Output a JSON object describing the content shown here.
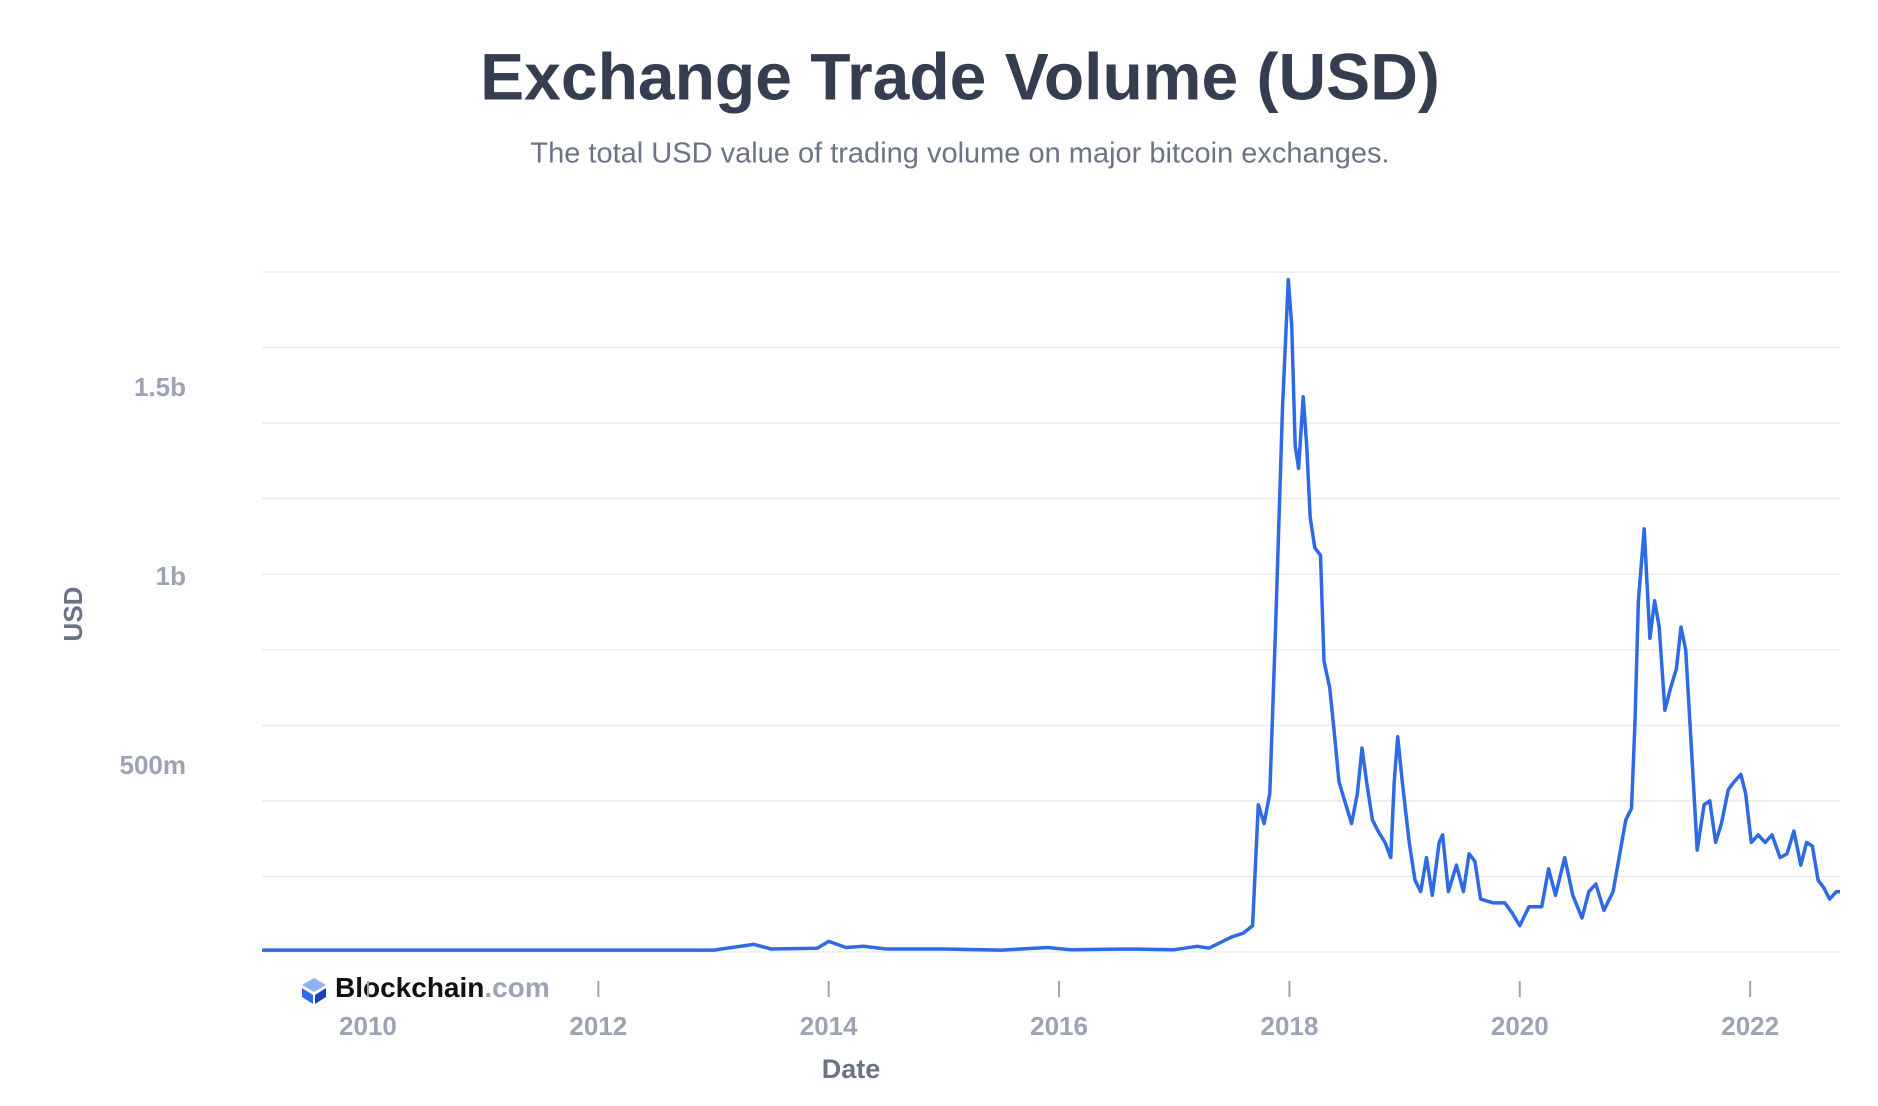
{
  "chart_data": {
    "type": "line",
    "title": "Exchange Trade Volume (USD)",
    "subtitle": "The total USD value of trading volume on major bitcoin exchanges.",
    "x_label": "Date",
    "y_label": "USD",
    "watermark": {
      "brand": "Blockchain",
      "domain": ".com"
    },
    "xlim": [
      2009.08,
      2022.78
    ],
    "xticks": [
      2010,
      2012,
      2014,
      2016,
      2018,
      2020,
      2022
    ],
    "ylim": [
      0,
      1800000000.0
    ],
    "yticks": [
      {
        "value": 500000000.0,
        "label": "500m"
      },
      {
        "value": 1000000000.0,
        "label": "1b"
      },
      {
        "value": 1500000000.0,
        "label": "1.5b"
      }
    ],
    "ygrid": [
      0,
      200000000.0,
      400000000.0,
      600000000.0,
      800000000.0,
      1000000000.0,
      1200000000.0,
      1400000000.0,
      1600000000.0,
      1800000000.0
    ],
    "grid": true,
    "series": [
      {
        "name": "USD",
        "color": "#2d6ae3",
        "x": [
          2009.08,
          2013.0,
          2013.35,
          2013.5,
          2013.9,
          2014.0,
          2014.15,
          2014.3,
          2014.5,
          2015.0,
          2015.5,
          2015.9,
          2016.1,
          2016.6,
          2017.0,
          2017.2,
          2017.3,
          2017.5,
          2017.6,
          2017.68,
          2017.73,
          2017.78,
          2017.83,
          2017.88,
          2017.94,
          2017.99,
          2018.02,
          2018.05,
          2018.08,
          2018.12,
          2018.15,
          2018.18,
          2018.22,
          2018.27,
          2018.3,
          2018.35,
          2018.39,
          2018.43,
          2018.49,
          2018.54,
          2018.59,
          2018.63,
          2018.67,
          2018.72,
          2018.77,
          2018.83,
          2018.88,
          2018.91,
          2018.94,
          2018.98,
          2019.04,
          2019.09,
          2019.14,
          2019.19,
          2019.24,
          2019.3,
          2019.33,
          2019.38,
          2019.45,
          2019.51,
          2019.56,
          2019.61,
          2019.66,
          2019.77,
          2019.87,
          2019.93,
          2020.0,
          2020.08,
          2020.19,
          2020.25,
          2020.31,
          2020.39,
          2020.46,
          2020.54,
          2020.6,
          2020.66,
          2020.73,
          2020.81,
          2020.92,
          2020.97,
          2021.0,
          2021.03,
          2021.08,
          2021.13,
          2021.17,
          2021.21,
          2021.26,
          2021.31,
          2021.36,
          2021.4,
          2021.44,
          2021.49,
          2021.54,
          2021.6,
          2021.65,
          2021.7,
          2021.75,
          2021.81,
          2021.86,
          2021.92,
          2021.96,
          2022.01,
          2022.07,
          2022.13,
          2022.19,
          2022.26,
          2022.32,
          2022.38,
          2022.44,
          2022.49,
          2022.54,
          2022.59,
          2022.64,
          2022.69,
          2022.75,
          2022.78
        ],
        "values": [
          5000000.0,
          5000000.0,
          20000000.0,
          8000000.0,
          10000000.0,
          28000000.0,
          12000000.0,
          15000000.0,
          8000000.0,
          8000000.0,
          5000000.0,
          12000000.0,
          6000000.0,
          8000000.0,
          6000000.0,
          15000000.0,
          10000000.0,
          40000000.0,
          50000000.0,
          70000000.0,
          390000000.0,
          340000000.0,
          420000000.0,
          860000000.0,
          1440000000.0,
          1780000000.0,
          1660000000.0,
          1340000000.0,
          1280000000.0,
          1470000000.0,
          1340000000.0,
          1150000000.0,
          1070000000.0,
          1050000000.0,
          770000000.0,
          700000000.0,
          580000000.0,
          450000000.0,
          390000000.0,
          340000000.0,
          420000000.0,
          540000000.0,
          450000000.0,
          350000000.0,
          320000000.0,
          290000000.0,
          250000000.0,
          450000000.0,
          570000000.0,
          450000000.0,
          290000000.0,
          190000000.0,
          160000000.0,
          250000000.0,
          150000000.0,
          290000000.0,
          310000000.0,
          160000000.0,
          230000000.0,
          160000000.0,
          260000000.0,
          240000000.0,
          140000000.0,
          130000000.0,
          130000000.0,
          105000000.0,
          70000000.0,
          120000000.0,
          120000000.0,
          220000000.0,
          150000000.0,
          250000000.0,
          150000000.0,
          90000000.0,
          160000000.0,
          180000000.0,
          110000000.0,
          160000000.0,
          350000000.0,
          380000000.0,
          610000000.0,
          930000000.0,
          1120000000.0,
          830000000.0,
          930000000.0,
          860000000.0,
          640000000.0,
          700000000.0,
          750000000.0,
          860000000.0,
          800000000.0,
          540000000.0,
          270000000.0,
          390000000.0,
          400000000.0,
          290000000.0,
          340000000.0,
          430000000.0,
          450000000.0,
          470000000.0,
          420000000.0,
          290000000.0,
          310000000.0,
          290000000.0,
          310000000.0,
          250000000.0,
          260000000.0,
          320000000.0,
          230000000.0,
          290000000.0,
          280000000.0,
          190000000.0,
          170000000.0,
          140000000.0,
          160000000.0,
          160000000.0
        ]
      }
    ]
  }
}
